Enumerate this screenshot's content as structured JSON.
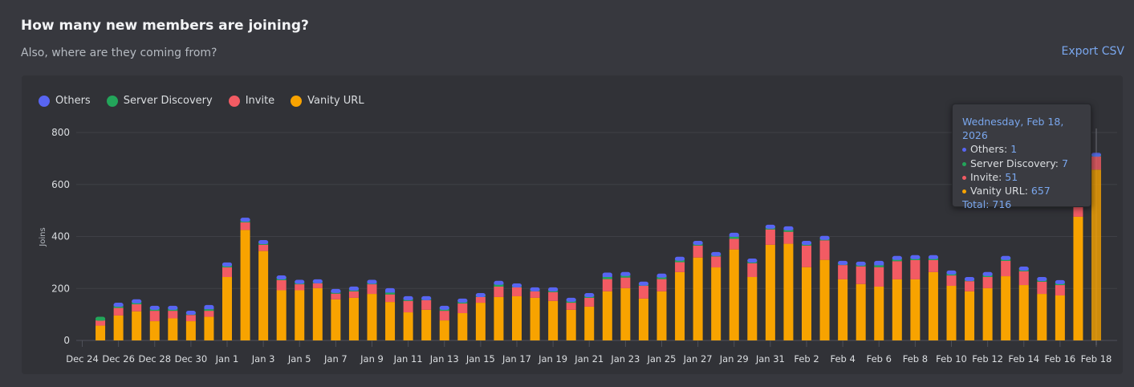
{
  "header": {
    "title": "How many new members are joining?",
    "subtitle": "Also, where are they coming from?",
    "export_label": "Export CSV"
  },
  "colors": {
    "others": "#5865f2",
    "server_discovery": "#23a55a",
    "invite": "#f25b63",
    "vanity_url": "#f8a300",
    "accent": "#7aa7ee"
  },
  "tooltip": {
    "date": "Wednesday, Feb 18, 2026",
    "rows": [
      {
        "label": "Others:",
        "value": "1",
        "color": "#5865f2"
      },
      {
        "label": "Server Discovery:",
        "value": "7",
        "color": "#23a55a"
      },
      {
        "label": "Invite:",
        "value": "51",
        "color": "#f25b63"
      },
      {
        "label": "Vanity URL:",
        "value": "657",
        "color": "#f8a300"
      }
    ],
    "total_label": "Total:",
    "total_value": "716"
  },
  "chart_data": {
    "type": "bar",
    "stacked": true,
    "title": "",
    "xlabel": "",
    "ylabel": "Joins",
    "ylim": [
      0,
      800
    ],
    "y_ticks": [
      0,
      200,
      400,
      600,
      800
    ],
    "grid": true,
    "legend_placement": "top-left",
    "highlighted_category": "Feb 18",
    "categories": [
      "Dec 24",
      "Dec 25",
      "Dec 26",
      "Dec 27",
      "Dec 28",
      "Dec 29",
      "Dec 30",
      "Dec 31",
      "Jan 1",
      "Jan 2",
      "Jan 3",
      "Jan 4",
      "Jan 5",
      "Jan 6",
      "Jan 7",
      "Jan 8",
      "Jan 9",
      "Jan 10",
      "Jan 11",
      "Jan 12",
      "Jan 13",
      "Jan 14",
      "Jan 15",
      "Jan 16",
      "Jan 17",
      "Jan 18",
      "Jan 19",
      "Jan 20",
      "Jan 21",
      "Jan 22",
      "Jan 23",
      "Jan 24",
      "Jan 25",
      "Jan 26",
      "Jan 27",
      "Jan 28",
      "Jan 29",
      "Jan 30",
      "Jan 31",
      "Feb 1",
      "Feb 2",
      "Feb 3",
      "Feb 4",
      "Feb 5",
      "Feb 6",
      "Feb 7",
      "Feb 8",
      "Feb 9",
      "Feb 10",
      "Feb 11",
      "Feb 12",
      "Feb 13",
      "Feb 14",
      "Feb 15",
      "Feb 16",
      "Feb 17",
      "Feb 18"
    ],
    "x_tick_labels": [
      "Dec 24",
      "Dec 26",
      "Dec 28",
      "Dec 30",
      "Jan 1",
      "Jan 3",
      "Jan 5",
      "Jan 7",
      "Jan 9",
      "Jan 11",
      "Jan 13",
      "Jan 15",
      "Jan 17",
      "Jan 19",
      "Jan 21",
      "Jan 23",
      "Jan 25",
      "Jan 27",
      "Jan 29",
      "Jan 31",
      "Feb 2",
      "Feb 4",
      "Feb 6",
      "Feb 8",
      "Feb 10",
      "Feb 12",
      "Feb 14",
      "Feb 16",
      "Feb 18"
    ],
    "series": [
      {
        "name": "Vanity URL",
        "color": "#f8a300",
        "values": [
          0,
          57,
          96,
          112,
          74,
          85,
          74,
          91,
          244,
          425,
          344,
          193,
          193,
          201,
          158,
          164,
          179,
          148,
          108,
          118,
          77,
          105,
          145,
          167,
          170,
          164,
          152,
          118,
          130,
          189,
          201,
          161,
          189,
          263,
          319,
          281,
          350,
          244,
          368,
          372,
          282,
          310,
          235,
          217,
          207,
          235,
          235,
          263,
          210,
          189,
          201,
          247,
          213,
          179,
          173,
          476,
          657
        ]
      },
      {
        "name": "Invite",
        "color": "#f25b63",
        "values": [
          0,
          20,
          29,
          27,
          40,
          29,
          24,
          23,
          37,
          29,
          24,
          39,
          23,
          19,
          22,
          25,
          37,
          29,
          44,
          37,
          37,
          37,
          22,
          40,
          34,
          25,
          34,
          27,
          34,
          47,
          41,
          49,
          47,
          38,
          46,
          42,
          41,
          53,
          59,
          46,
          83,
          75,
          55,
          68,
          75,
          70,
          74,
          46,
          40,
          39,
          43,
          59,
          53,
          47,
          40,
          70,
          51
        ]
      },
      {
        "name": "Server Discovery",
        "color": "#23a55a",
        "values": [
          0,
          8,
          7,
          10,
          10,
          10,
          9,
          6,
          10,
          9,
          10,
          9,
          10,
          8,
          5,
          7,
          10,
          7,
          7,
          8,
          10,
          8,
          8,
          9,
          8,
          8,
          7,
          10,
          9,
          8,
          8,
          9,
          8,
          9,
          8,
          10,
          8,
          9,
          8,
          8,
          8,
          7,
          9,
          8,
          7,
          10,
          7,
          8,
          10,
          9,
          10,
          9,
          11,
          10,
          11,
          10,
          7
        ]
      },
      {
        "name": "Others",
        "color": "#5865f2",
        "values": [
          0,
          0,
          7,
          3,
          3,
          3,
          1,
          10,
          3,
          3,
          2,
          3,
          1,
          1,
          7,
          5,
          1,
          11,
          5,
          1,
          3,
          5,
          1,
          7,
          1,
          1,
          5,
          3,
          3,
          11,
          7,
          1,
          7,
          6,
          4,
          1,
          9,
          3,
          4,
          7,
          4,
          4,
          1,
          4,
          11,
          4,
          6,
          5,
          3,
          1,
          3,
          4,
          1,
          2,
          2,
          4,
          1
        ]
      }
    ],
    "legend": [
      "Others",
      "Server Discovery",
      "Invite",
      "Vanity URL"
    ]
  }
}
